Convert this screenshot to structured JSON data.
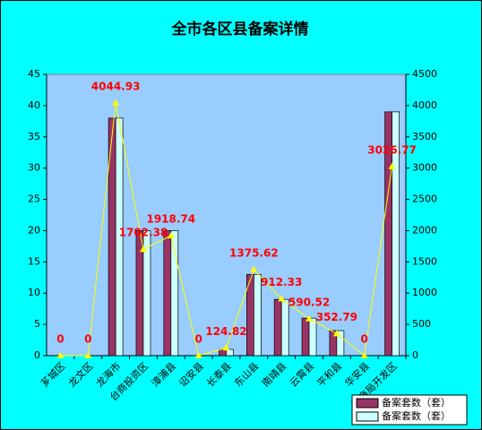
{
  "chart_data": {
    "type": "bar",
    "title": "全市各区县备案详情",
    "categories": [
      "芗城区",
      "龙文区",
      "龙海市",
      "台商投资区",
      "漳浦县",
      "诏安县",
      "长泰县",
      "东山县",
      "南靖县",
      "云霄县",
      "平和县",
      "华安县",
      "招商局开发区"
    ],
    "series": [
      {
        "name": "备案套数（套）",
        "color": "#993366",
        "values": [
          0,
          0,
          38,
          20,
          20,
          0,
          1,
          13,
          9,
          6,
          4,
          0,
          39
        ]
      },
      {
        "name": "备案套数（套）",
        "color": "#ccffff",
        "values": [
          0,
          0,
          38,
          20,
          20,
          0,
          1,
          13,
          9,
          6,
          4,
          0,
          39
        ]
      },
      {
        "type": "line",
        "axis": "y2",
        "color": "#ffff00",
        "values": [
          0,
          0,
          4044.93,
          1702.38,
          1918.74,
          0,
          124.82,
          1375.62,
          912.33,
          590.52,
          352.79,
          0,
          3026.77
        ]
      }
    ],
    "ylim": [
      0,
      45
    ],
    "yticks": [
      0,
      5,
      10,
      15,
      20,
      25,
      30,
      35,
      40,
      45
    ],
    "y2lim": [
      0,
      4500
    ],
    "y2ticks": [
      0,
      500,
      1000,
      1500,
      2000,
      2500,
      3000,
      3500,
      4000,
      4500
    ]
  }
}
